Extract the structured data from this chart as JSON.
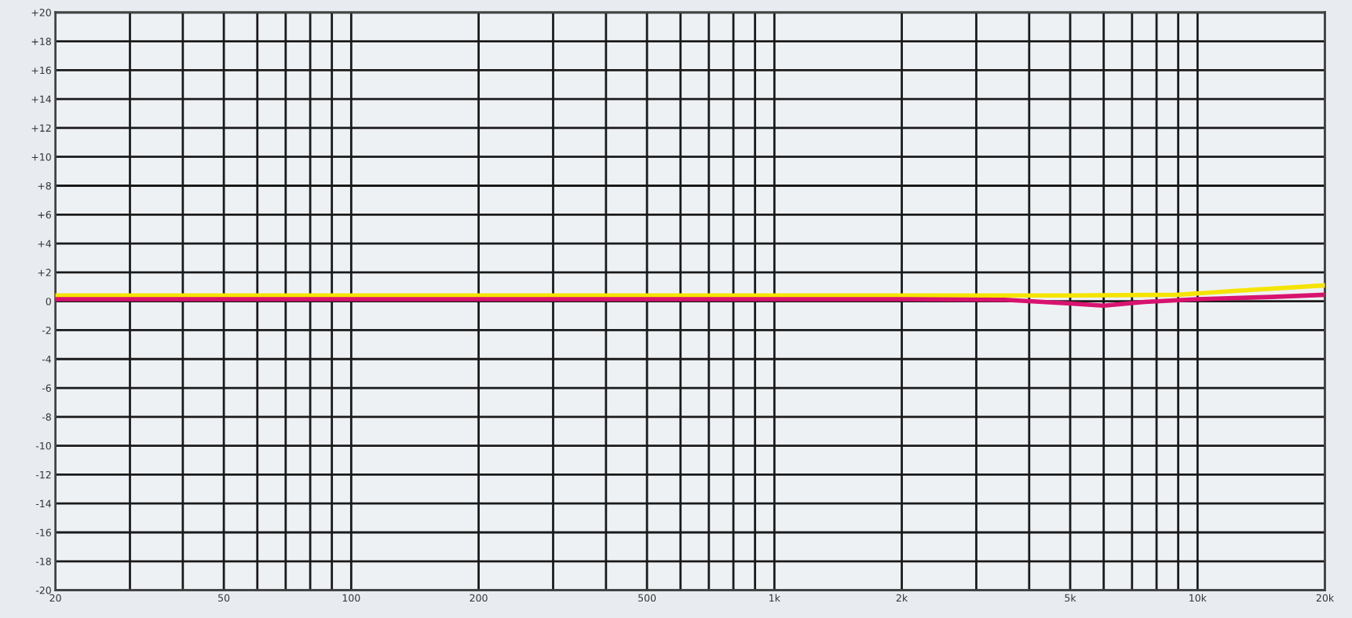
{
  "chart_data": {
    "type": "line",
    "log": "x",
    "grid": true,
    "marker": "none",
    "line_style": "solid",
    "xlim": [
      20,
      20000
    ],
    "xticks": [
      20,
      {
        "value": 30,
        "label": null
      },
      {
        "value": 40,
        "label": null
      },
      50,
      {
        "value": 60,
        "label": null
      },
      {
        "value": 70,
        "label": null
      },
      {
        "value": 80,
        "label": null
      },
      {
        "value": 90,
        "label": null
      },
      100,
      200,
      {
        "value": 300,
        "label": null
      },
      {
        "value": 400,
        "label": null
      },
      500,
      {
        "value": 600,
        "label": null
      },
      {
        "value": 700,
        "label": null
      },
      {
        "value": 800,
        "label": null
      },
      {
        "value": 900,
        "label": null
      },
      {
        "value": 1000,
        "label": "1k"
      },
      {
        "value": 2000,
        "label": "2k"
      },
      {
        "value": 3000,
        "label": null
      },
      {
        "value": 4000,
        "label": null
      },
      {
        "value": 5000,
        "label": "5k"
      },
      {
        "value": 6000,
        "label": null
      },
      {
        "value": 7000,
        "label": null
      },
      {
        "value": 8000,
        "label": null
      },
      {
        "value": 9000,
        "label": null
      },
      {
        "value": 10000,
        "label": "10k"
      },
      {
        "value": 20000,
        "label": "20k"
      }
    ],
    "ylim": [
      -20,
      20
    ],
    "yticks": [
      {
        "value": -20,
        "label": "-20"
      },
      {
        "value": -18,
        "label": "-18"
      },
      {
        "value": -16,
        "label": "-16"
      },
      {
        "value": -14,
        "label": "-14"
      },
      {
        "value": -12,
        "label": "-12"
      },
      {
        "value": -10,
        "label": "-10"
      },
      {
        "value": -8,
        "label": "-8"
      },
      {
        "value": -6,
        "label": "-6"
      },
      {
        "value": -4,
        "label": "-4"
      },
      {
        "value": -2,
        "label": "-2"
      },
      0,
      {
        "value": 2,
        "label": "+2"
      },
      {
        "value": 4,
        "label": "+4"
      },
      {
        "value": 6,
        "label": "+6"
      },
      {
        "value": 8,
        "label": "+8"
      },
      {
        "value": 10,
        "label": "+10"
      },
      {
        "value": 12,
        "label": "+12"
      },
      {
        "value": 14,
        "label": "+14"
      },
      {
        "value": 16,
        "label": "+16"
      },
      {
        "value": 18,
        "label": "+18"
      },
      {
        "value": 20,
        "label": "+20"
      }
    ],
    "series": [
      {
        "color": "#f5e400",
        "x": [
          20,
          1000,
          5000,
          9000,
          12000,
          20000
        ],
        "values": [
          0.4,
          0.4,
          0.4,
          0.45,
          0.7,
          1.1
        ]
      },
      {
        "color": "#d8136f",
        "x": [
          20,
          2000,
          3500,
          5000,
          6000,
          7500,
          10000,
          15000,
          20000
        ],
        "values": [
          0.15,
          0.15,
          0.1,
          -0.15,
          -0.3,
          -0.05,
          0.15,
          0.3,
          0.45
        ]
      }
    ]
  }
}
